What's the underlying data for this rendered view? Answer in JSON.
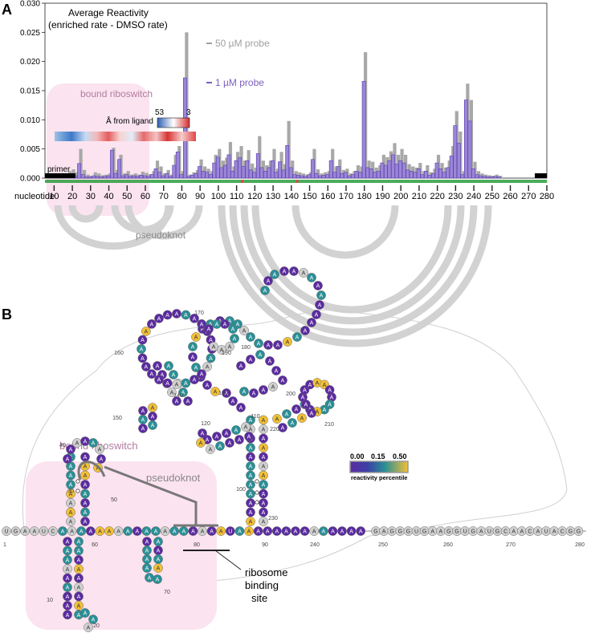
{
  "panel_a": {
    "label": "A",
    "title_line1": "Average Reactivity",
    "title_line2": "(enriched rate - DMSO rate)",
    "legend_probe50": "50 µM probe",
    "legend_probe1": "1 µM probe",
    "bound_riboswitch": "bound riboswitch",
    "heat_label": "Å from ligand",
    "heat_min": "3",
    "heat_max": "53",
    "primer": "primer",
    "nucleotide_label": "nucleotide",
    "pseudoknot": "pseudoknot",
    "colors": {
      "probe50": "#a0a0a0",
      "probe1": "#7b5fc2",
      "highlight": "#fbe3ef",
      "arc": "#d2d2d2"
    }
  },
  "chart_data": {
    "type": "bar",
    "ylim": [
      0,
      0.03
    ],
    "yticks": [
      "0.000",
      "0.005",
      "0.010",
      "0.015",
      "0.020",
      "0.025",
      "0.030"
    ],
    "xticks": [
      "10",
      "20",
      "30",
      "40",
      "50",
      "60",
      "70",
      "80",
      "90",
      "100",
      "110",
      "120",
      "130",
      "140",
      "150",
      "160",
      "170",
      "180",
      "190",
      "200",
      "210",
      "220",
      "230",
      "240",
      "250",
      "260",
      "270",
      "280"
    ],
    "xlim": [
      5,
      280
    ],
    "series": [
      {
        "name": "50 µM probe",
        "x": [
          16,
          18,
          20,
          22,
          24,
          26,
          28,
          30,
          32,
          34,
          36,
          38,
          40,
          42,
          44,
          46,
          48,
          50,
          52,
          54,
          56,
          58,
          60,
          62,
          64,
          66,
          68,
          70,
          72,
          74,
          76,
          78,
          80,
          82,
          84,
          86,
          88,
          90,
          92,
          94,
          96,
          98,
          100,
          102,
          104,
          106,
          108,
          110,
          112,
          114,
          116,
          118,
          120,
          122,
          124,
          126,
          128,
          130,
          132,
          134,
          136,
          138,
          140,
          142,
          144,
          146,
          148,
          150,
          152,
          154,
          156,
          158,
          160,
          162,
          164,
          166,
          168,
          170,
          172,
          174,
          176,
          178,
          180,
          182,
          184,
          186,
          188,
          190,
          192,
          194,
          196,
          198,
          200,
          202,
          204,
          206,
          208,
          210,
          212,
          214,
          216,
          218,
          220,
          222,
          224,
          226,
          228,
          230,
          232,
          234,
          236,
          238,
          240,
          242,
          244,
          246,
          248,
          250,
          252,
          254
        ],
        "values": [
          0.0003,
          0.0012,
          0.0015,
          0.001,
          0.005,
          0.0014,
          0.0006,
          0.0004,
          0.001,
          0.0008,
          0.0005,
          0.0006,
          0.0008,
          0.0052,
          0.0014,
          0.004,
          0.0008,
          0.0012,
          0.0006,
          0.0008,
          0.0006,
          0.0011,
          0.0009,
          0.0007,
          0.0012,
          0.003,
          0.002,
          0.0008,
          0.0014,
          0.0006,
          0.004,
          0.0055,
          0.0012,
          0.025,
          0.0006,
          0.001,
          0.0014,
          0.0032,
          0.002,
          0.0016,
          0.0012,
          0.004,
          0.005,
          0.003,
          0.0035,
          0.0062,
          0.002,
          0.0045,
          0.0055,
          0.003,
          0.0048,
          0.0025,
          0.0018,
          0.0072,
          0.003,
          0.0022,
          0.003,
          0.005,
          0.0016,
          0.0045,
          0.0024,
          0.0098,
          0.003,
          0.0012,
          0.001,
          0.0008,
          0.0006,
          0.001,
          0.005,
          0.0015,
          0.0008,
          0.001,
          0.0012,
          0.005,
          0.002,
          0.0032,
          0.0014,
          0.0016,
          0.0008,
          0.0012,
          0.0022,
          0.002,
          0.0216,
          0.003,
          0.0028,
          0.0018,
          0.0022,
          0.004,
          0.0036,
          0.0046,
          0.006,
          0.004,
          0.005,
          0.004,
          0.0024,
          0.002,
          0.0018,
          0.0026,
          0.0012,
          0.0022,
          0.001,
          0.0016,
          0.004,
          0.0026,
          0.0018,
          0.003,
          0.0055,
          0.0115,
          0.008,
          0.0012,
          0.0162,
          0.0134,
          0.0028,
          0.0012,
          0.0008,
          0.0006,
          0.0005,
          0.0004,
          0.0006,
          0.0004
        ]
      },
      {
        "name": "1 µM probe",
        "x": [
          16,
          18,
          20,
          22,
          24,
          26,
          28,
          30,
          32,
          34,
          36,
          38,
          40,
          42,
          44,
          46,
          48,
          50,
          52,
          54,
          56,
          58,
          60,
          62,
          64,
          66,
          68,
          70,
          72,
          74,
          76,
          78,
          80,
          82,
          84,
          86,
          88,
          90,
          92,
          94,
          96,
          98,
          100,
          102,
          104,
          106,
          108,
          110,
          112,
          114,
          116,
          118,
          120,
          122,
          124,
          126,
          128,
          130,
          132,
          134,
          136,
          138,
          140,
          142,
          144,
          146,
          148,
          150,
          152,
          154,
          156,
          158,
          160,
          162,
          164,
          166,
          168,
          170,
          172,
          174,
          176,
          178,
          180,
          182,
          184,
          186,
          188,
          190,
          192,
          194,
          196,
          198,
          200,
          202,
          204,
          206,
          208,
          210,
          212,
          214,
          216,
          218,
          220,
          222,
          224,
          226,
          228,
          230,
          232,
          234,
          236,
          238,
          240,
          242,
          244,
          246,
          248,
          250,
          252,
          254
        ],
        "values": [
          0.0001,
          0.0004,
          0.0006,
          0.0004,
          0.0025,
          0.0006,
          0.0002,
          0.0002,
          0.0004,
          0.0003,
          0.0002,
          0.0003,
          0.0004,
          0.0048,
          0.0008,
          0.0032,
          0.0004,
          0.0006,
          0.0003,
          0.0004,
          0.0003,
          0.0005,
          0.0004,
          0.0003,
          0.0006,
          0.0016,
          0.001,
          0.0004,
          0.0008,
          0.0003,
          0.0022,
          0.0045,
          0.0006,
          0.0172,
          0.0003,
          0.0005,
          0.0008,
          0.002,
          0.0012,
          0.001,
          0.0006,
          0.0026,
          0.0036,
          0.0018,
          0.0022,
          0.004,
          0.0012,
          0.003,
          0.0035,
          0.002,
          0.003,
          0.0014,
          0.001,
          0.0042,
          0.0018,
          0.0012,
          0.0018,
          0.003,
          0.001,
          0.0028,
          0.0014,
          0.0056,
          0.0018,
          0.0006,
          0.0005,
          0.0004,
          0.0003,
          0.0006,
          0.0032,
          0.0008,
          0.0004,
          0.0005,
          0.0006,
          0.003,
          0.001,
          0.002,
          0.0008,
          0.001,
          0.0004,
          0.0006,
          0.0012,
          0.001,
          0.0166,
          0.0018,
          0.0016,
          0.001,
          0.0012,
          0.0026,
          0.0022,
          0.003,
          0.004,
          0.0024,
          0.003,
          0.0026,
          0.0014,
          0.0012,
          0.001,
          0.0016,
          0.0006,
          0.0012,
          0.0005,
          0.0008,
          0.0026,
          0.0016,
          0.001,
          0.0018,
          0.0038,
          0.009,
          0.006,
          0.0006,
          0.0134,
          0.0098,
          0.0016,
          0.0006,
          0.0004,
          0.0003,
          0.0002,
          0.0002,
          0.0003,
          0.0002
        ]
      }
    ]
  },
  "panel_b": {
    "label": "B",
    "bound_riboswitch": "bound riboswitch",
    "pseudoknot": "pseudoknot",
    "ribosome_line1": "ribosome",
    "ribosome_line2": "binding",
    "ribosome_line3": "site",
    "scale_0": "0.00",
    "scale_15": "0.15",
    "scale_50": "0.50",
    "scale_title": "reactivity percentile",
    "backbone_5p": "UGAAUC",
    "backbone_3p": "GAGGGUGAAGGUGAUGCAACAUACGG",
    "position_labels": [
      "1",
      "10",
      "20",
      "30",
      "40",
      "50",
      "60",
      "70",
      "80",
      "90",
      "100",
      "110",
      "120",
      "130",
      "140",
      "150",
      "160",
      "170",
      "180",
      "190",
      "200",
      "210",
      "220",
      "230",
      "240",
      "250",
      "260",
      "270",
      "280"
    ],
    "colors": {
      "low": "#5b2ba0",
      "mid": "#2a8f96",
      "high": "#f2c038",
      "none": "#d0d0d0"
    }
  }
}
